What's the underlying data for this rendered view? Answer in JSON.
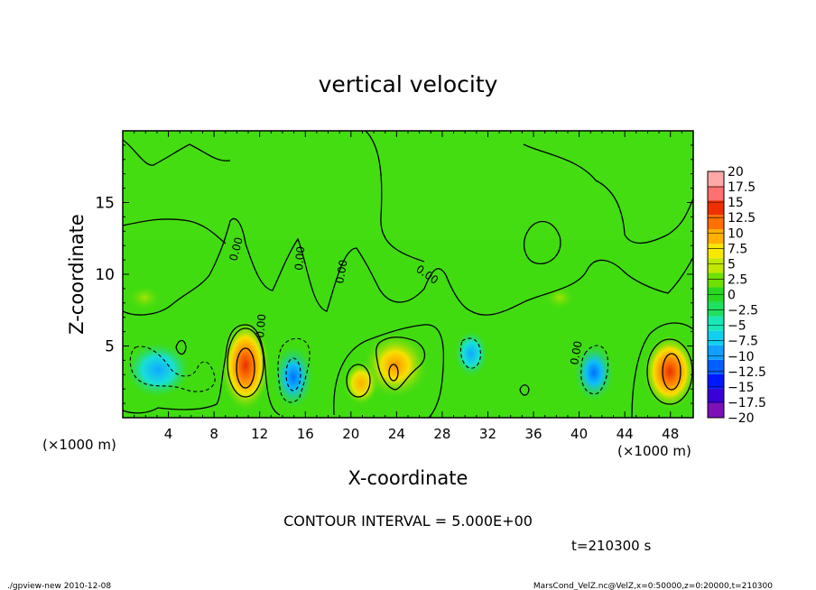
{
  "chart_data": {
    "type": "heatmap",
    "title": "vertical velocity",
    "xlabel": "X-coordinate",
    "ylabel": "Z-coordinate",
    "xunit_left": "(×1000 m)",
    "xunit_right": "(×1000 m)",
    "xlim": [
      0,
      50
    ],
    "ylim": [
      0,
      20
    ],
    "x_ticks": [
      4,
      8,
      12,
      16,
      20,
      24,
      28,
      32,
      36,
      40,
      44,
      48
    ],
    "y_ticks": [
      5,
      10,
      15
    ],
    "contour_interval_text": "CONTOUR INTERVAL = 5.000E+00",
    "time_text": "t=210300 s",
    "colorbar": {
      "levels": [
        -20,
        -17.5,
        -15,
        -12.5,
        -10,
        -7.5,
        -5,
        -2.5,
        0,
        2.5,
        5,
        7.5,
        10,
        12.5,
        15,
        17.5,
        20
      ],
      "labels": [
        "20",
        "17.5",
        "15",
        "12.5",
        "10",
        "7.5",
        "5",
        "2.5",
        "0",
        "−2.5",
        "−5",
        "−7.5",
        "−10",
        "−12.5",
        "−15",
        "−17.5",
        "−20"
      ],
      "colors": [
        "#7d10b8",
        "#3a00d8",
        "#0018ff",
        "#0060ff",
        "#10a0ff",
        "#10d0f0",
        "#18e8b8",
        "#20e060",
        "#28d820",
        "#70e000",
        "#c0e800",
        "#f8e800",
        "#ffb000",
        "#ff7000",
        "#f03000",
        "#ff7070",
        "#ffa8a8"
      ]
    },
    "features": [
      {
        "kind": "updraft",
        "x": 11,
        "z": 3.5,
        "peak": 15
      },
      {
        "kind": "updraft",
        "x": 24,
        "z": 3.5,
        "peak": 10
      },
      {
        "kind": "updraft",
        "x": 21,
        "z": 2.5,
        "peak": 7.5
      },
      {
        "kind": "updraft",
        "x": 48,
        "z": 3.2,
        "peak": 12.5
      },
      {
        "kind": "downdraft",
        "x": 15,
        "z": 3.0,
        "peak": -12.5
      },
      {
        "kind": "downdraft",
        "x": 3,
        "z": 3.5,
        "peak": -7.5
      },
      {
        "kind": "downdraft",
        "x": 30.5,
        "z": 4.5,
        "peak": -7.5
      },
      {
        "kind": "downdraft",
        "x": 40.5,
        "z": 3.5,
        "peak": -10
      }
    ]
  },
  "footer": {
    "left": "./gpview-new   2010-12-08",
    "right": "MarsCond_VelZ.nc@VelZ,x=0:50000,z=0:20000,t=210300"
  }
}
